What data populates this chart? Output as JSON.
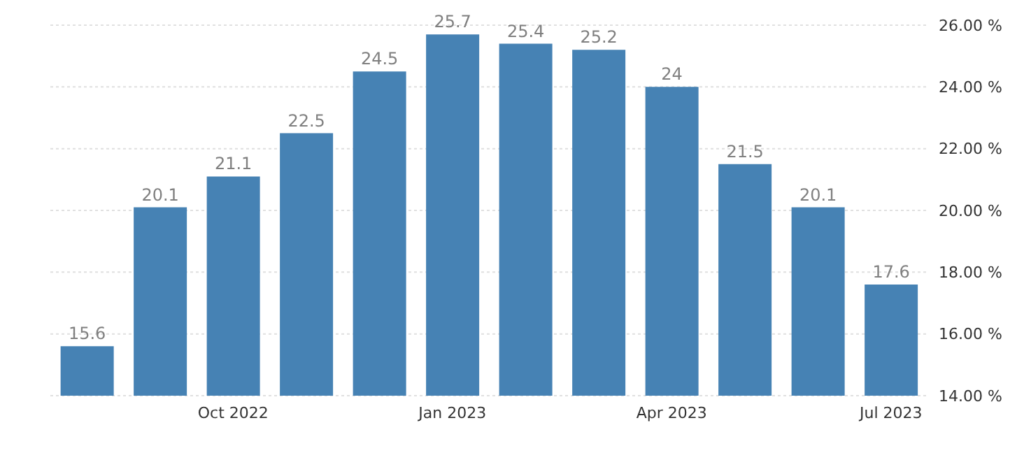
{
  "chart_data": {
    "type": "bar",
    "categories": [
      null,
      null,
      "Oct 2022",
      null,
      null,
      "Jan 2023",
      null,
      null,
      "Apr 2023",
      null,
      null,
      "Jul 2023"
    ],
    "values": [
      15.6,
      20.1,
      21.1,
      22.5,
      24.5,
      25.7,
      25.4,
      25.2,
      24,
      21.5,
      20.1,
      17.6
    ],
    "color": "#4682b4",
    "ylim": [
      14,
      26
    ],
    "yticks": [
      {
        "value": 14,
        "label": "14.00 %"
      },
      {
        "value": 16,
        "label": "16.00 %"
      },
      {
        "value": 18,
        "label": "18.00 %"
      },
      {
        "value": 20,
        "label": "20.00 %"
      },
      {
        "value": 22,
        "label": "22.00 %"
      },
      {
        "value": 24,
        "label": "24.00 %"
      },
      {
        "value": 26,
        "label": "26.00 %"
      }
    ],
    "grid": "y",
    "data_labels": true
  }
}
